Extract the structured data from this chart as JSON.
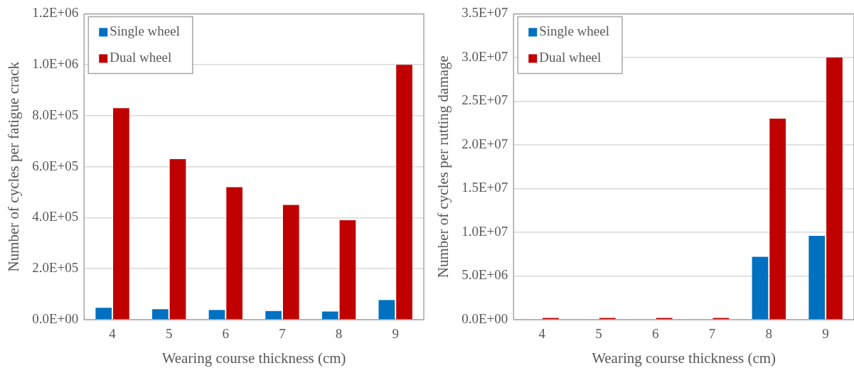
{
  "chart_data": [
    {
      "type": "bar",
      "xlabel": "Wearing course thickness (cm)",
      "ylabel": "Number of cycles per fatigue crack",
      "categories": [
        "4",
        "5",
        "6",
        "7",
        "8",
        "9"
      ],
      "series": [
        {
          "name": "Single wheel",
          "color": "#0070c0",
          "values": [
            47000,
            41000,
            38000,
            34000,
            32000,
            77000
          ]
        },
        {
          "name": "Dual wheel",
          "color": "#c00000",
          "values": [
            830000,
            630000,
            520000,
            450000,
            390000,
            1000000
          ]
        }
      ],
      "ylim": [
        0,
        1200000
      ],
      "yticks": [
        {
          "value": 0,
          "label": "0.0E+00"
        },
        {
          "value": 200000,
          "label": "2.0E+05"
        },
        {
          "value": 400000,
          "label": "4.0E+05"
        },
        {
          "value": 600000,
          "label": "6.0E+05"
        },
        {
          "value": 800000,
          "label": "8.0E+05"
        },
        {
          "value": 1000000,
          "label": "1.0E+06"
        },
        {
          "value": 1200000,
          "label": "1.2E+06"
        }
      ],
      "grid": "y",
      "legend": "top left"
    },
    {
      "type": "bar",
      "xlabel": "Wearing course thickness (cm)",
      "ylabel": "Number of cycles per rutting damage",
      "categories": [
        "4",
        "5",
        "6",
        "7",
        "8",
        "9"
      ],
      "series": [
        {
          "name": "Single wheel",
          "color": "#0070c0",
          "values": [
            null,
            null,
            null,
            null,
            7200000,
            9600000
          ]
        },
        {
          "name": "Dual wheel",
          "color": "#c00000",
          "values": [
            200000,
            200000,
            200000,
            200000,
            23000000,
            30000000
          ]
        }
      ],
      "ylim": [
        0,
        35000000
      ],
      "yticks": [
        {
          "value": 0,
          "label": "0.0E+00"
        },
        {
          "value": 5000000,
          "label": "5.0E+06"
        },
        {
          "value": 10000000,
          "label": "1.0E+07"
        },
        {
          "value": 15000000,
          "label": "1.5E+07"
        },
        {
          "value": 20000000,
          "label": "2.0E+07"
        },
        {
          "value": 25000000,
          "label": "2.5E+07"
        },
        {
          "value": 30000000,
          "label": "3.0E+07"
        },
        {
          "value": 35000000,
          "label": "3.5E+07"
        }
      ],
      "grid": "y",
      "legend": "top left"
    }
  ]
}
